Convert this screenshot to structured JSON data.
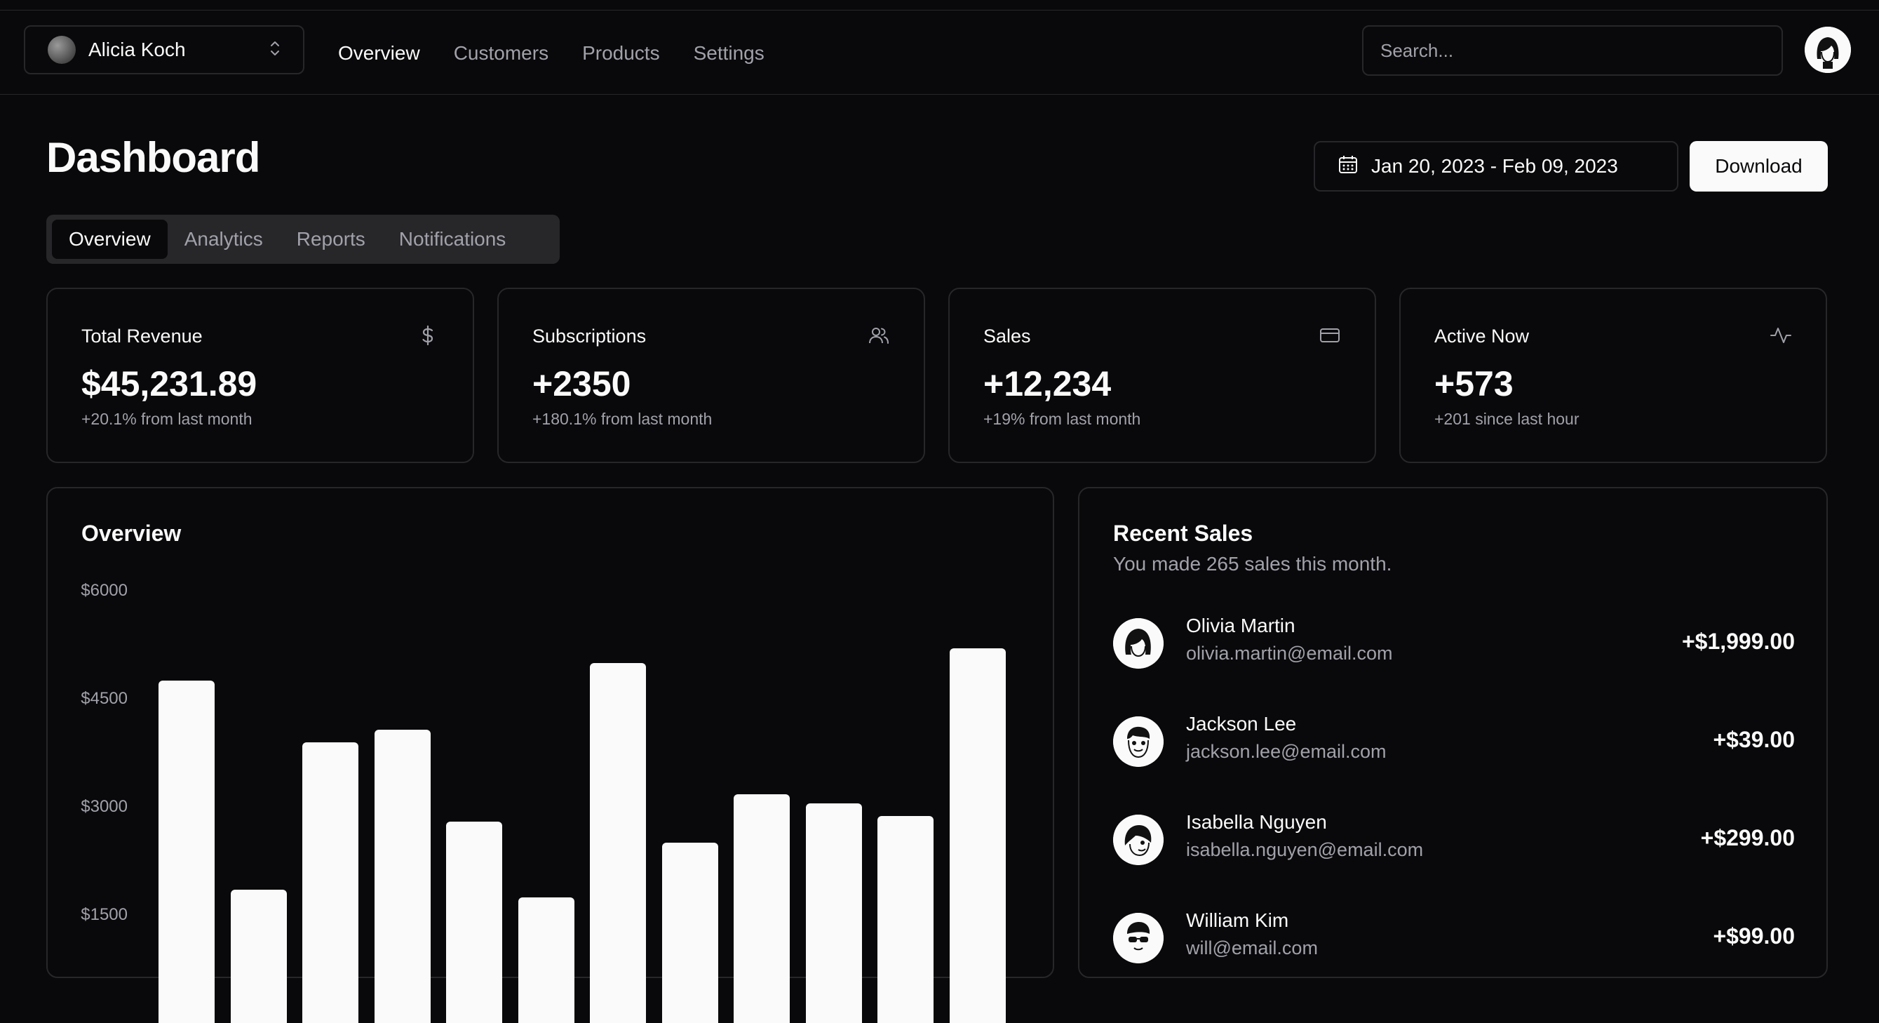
{
  "team": {
    "name": "Alicia Koch"
  },
  "nav": [
    "Overview",
    "Customers",
    "Products",
    "Settings"
  ],
  "search": {
    "placeholder": "Search..."
  },
  "page": {
    "title": "Dashboard",
    "date_range": "Jan 20, 2023 - Feb 09, 2023",
    "download_label": "Download"
  },
  "tabs": [
    "Overview",
    "Analytics",
    "Reports",
    "Notifications"
  ],
  "stats": [
    {
      "title": "Total Revenue",
      "value": "$45,231.89",
      "sub": "+20.1% from last month",
      "icon": "dollar-icon"
    },
    {
      "title": "Subscriptions",
      "value": "+2350",
      "sub": "+180.1% from last month",
      "icon": "users-icon"
    },
    {
      "title": "Sales",
      "value": "+12,234",
      "sub": "+19% from last month",
      "icon": "credit-card-icon"
    },
    {
      "title": "Active Now",
      "value": "+573",
      "sub": "+201 since last hour",
      "icon": "activity-icon"
    }
  ],
  "overview": {
    "title": "Overview"
  },
  "chart_data": {
    "type": "bar",
    "title": "Overview",
    "yticks": [
      "$6000",
      "$4500",
      "$3000",
      "$1500"
    ],
    "ylim": [
      0,
      6000
    ],
    "values": [
      4750,
      1850,
      3900,
      4070,
      2800,
      1740,
      5000,
      2500,
      3180,
      3050,
      2870,
      5200
    ]
  },
  "recent_sales": {
    "title": "Recent Sales",
    "description": "You made 265 sales this month.",
    "items": [
      {
        "name": "Olivia Martin",
        "email": "olivia.martin@email.com",
        "amount": "+$1,999.00"
      },
      {
        "name": "Jackson Lee",
        "email": "jackson.lee@email.com",
        "amount": "+$39.00"
      },
      {
        "name": "Isabella Nguyen",
        "email": "isabella.nguyen@email.com",
        "amount": "+$299.00"
      },
      {
        "name": "William Kim",
        "email": "will@email.com",
        "amount": "+$99.00"
      }
    ]
  }
}
